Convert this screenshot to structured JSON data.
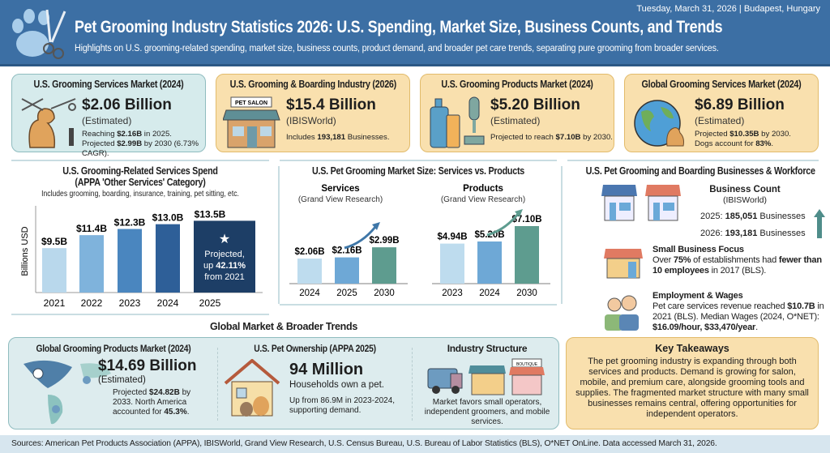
{
  "header": {
    "date": "Tuesday, March 31, 2026 | Budapest, Hungary",
    "title": "Pet Grooming Industry Statistics 2026: U.S. Spending, Market Size, Business Counts, and Trends",
    "subtitle": "Highlights on U.S. grooming-related spending, market size, business counts, product demand, and broader pet care trends, separating pure grooming from broader services."
  },
  "cards": [
    {
      "title": "U.S. Grooming Services Market (2024)",
      "value": "$2.06 Billion",
      "qualifier": "(Estimated)",
      "note_a": "Reaching ",
      "note_b": "$2.16B",
      "note_c": " in 2025. Projected ",
      "note_d": "$2.99B",
      "note_e": " by 2030 (6.73% CAGR)."
    },
    {
      "title": "U.S. Grooming & Boarding Industry (2026)",
      "value": "$15.4 Billion",
      "qualifier": "(IBISWorld)",
      "note_a": "Includes ",
      "note_b": "193,181",
      "note_c": " Businesses.",
      "sign": "PET SALON"
    },
    {
      "title": "U.S. Grooming Products Market (2024)",
      "value": "$5.20 Billion",
      "qualifier": "(Estimated)",
      "note_a": "Projected to reach ",
      "note_b": "$7.10B",
      "note_c": " by 2030."
    },
    {
      "title": "Global Grooming Services Market (2024)",
      "value": "$6.89 Billion",
      "qualifier": "(Estimated)",
      "note_a": "Projected ",
      "note_b": "$10.35B",
      "note_c": " by 2030.",
      "note_d": "Dogs account for ",
      "note_e": "83%",
      "note_f": "."
    }
  ],
  "chart_data": [
    {
      "type": "bar",
      "title": "U.S. Grooming-Related Services Spend",
      "subtitle": "(APPA 'Other Services' Category)",
      "caption": "Includes grooming, boarding, insurance, training, pet sitting, etc.",
      "ylabel": "Billions USD",
      "categories": [
        "2021",
        "2022",
        "2023",
        "2024",
        "2025"
      ],
      "values": [
        9.5,
        11.4,
        12.3,
        13.0,
        13.5
      ],
      "labels": [
        "$9.5B",
        "$11.4B",
        "$12.3B",
        "$13.0B",
        "$13.5B"
      ],
      "colors": [
        "#b9d8ec",
        "#7fb3dc",
        "#4a86bf",
        "#2e5f98",
        "#1d3e66"
      ],
      "ylim": [
        3,
        14.5
      ],
      "annotation": {
        "line1": "Projected,",
        "line2a": "up ",
        "line2b": "42.11%",
        "line3": "from 2021"
      }
    },
    {
      "type": "bar",
      "title": "U.S. Pet Grooming Market Size: Services vs. Products",
      "panels": [
        {
          "name": "Services",
          "source": "(Grand View Research)",
          "categories": [
            "2024",
            "2025",
            "2030"
          ],
          "values": [
            2.06,
            2.16,
            2.99
          ],
          "labels": [
            "$2.06B",
            "$2.16B",
            "$2.99B"
          ],
          "ylim": [
            0,
            6
          ]
        },
        {
          "name": "Products",
          "source": "(Grand View Research)",
          "categories": [
            "2023",
            "2024",
            "2030"
          ],
          "values": [
            4.94,
            5.2,
            7.1
          ],
          "labels": [
            "$4.94B",
            "$5.20B",
            "$7.10B"
          ],
          "ylim": [
            0,
            9
          ]
        }
      ],
      "colors": [
        "#bedcee",
        "#6ea8d6",
        "#5e9c8f"
      ]
    }
  ],
  "workforce": {
    "title": "U.S. Pet Grooming and Boarding Businesses & Workforce",
    "count_title": "Business Count",
    "count_source": "(IBISWorld)",
    "y2025": "2025: ",
    "n2025": "185,051",
    "y2026": "2026: ",
    "n2026": "193,181",
    "biz": " Businesses",
    "small_title": "Small Business Focus",
    "small_a": "Over ",
    "small_b": "75%",
    "small_c": " of establishments had ",
    "small_d": "fewer than 10 employees",
    "small_e": " in 2017 (BLS).",
    "emp_title": "Employment & Wages",
    "emp_a": "Pet care services revenue reached ",
    "emp_b": "$10.7B",
    "emp_c": " in 2021 (BLS). Median Wages (2024, O*NET): ",
    "emp_d": "$16.09/hour, $33,470/year",
    "emp_e": "."
  },
  "global_title": "Global Market & Broader Trends",
  "global_products": {
    "title": "Global Grooming Products Market (2024)",
    "value": "$14.69 Billion",
    "qualifier": "(Estimated)",
    "a": "Projected ",
    "b": "$24.82B",
    "c": " by 2033. North America accounted for ",
    "d": "45.3%",
    "e": "."
  },
  "ownership": {
    "title": "U.S. Pet Ownership (APPA 2025)",
    "value": "94 Million",
    "desc": "Households own a pet.",
    "note": "Up from 86.9M in 2023-2024, supporting demand."
  },
  "structure": {
    "title": "Industry Structure",
    "desc": "Market favors small operators, independent groomers, and mobile services.",
    "sign": "BOUTIQUE"
  },
  "takeaways": {
    "title": "Key Takeaways",
    "text": "The pet grooming industry is expanding through both services and products. Demand is growing for salon, mobile, and premium care, alongside grooming tools and supplies. The fragmented market structure with many small businesses remains central, offering opportunities for independent operators."
  },
  "footer": "Sources: American Pet Products Association (APPA), IBISWorld, Grand View Research, U.S. Census Bureau, U.S. Bureau of Labor Statistics (BLS), O*NET OnLine. Data accessed March 31, 2026."
}
